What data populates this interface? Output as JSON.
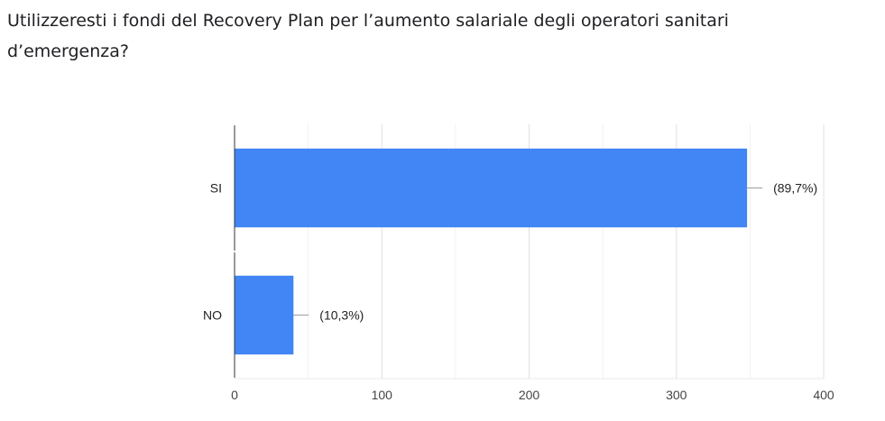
{
  "question": {
    "title": "Utilizzeresti i fondi del Recovery Plan per l’aumento salariale degli operatori sanitari d’emergenza?"
  },
  "chart_data": {
    "type": "bar",
    "orientation": "horizontal",
    "categories": [
      "SI",
      "NO"
    ],
    "values": [
      348,
      40
    ],
    "data_labels": [
      "(89,7%)",
      "(10,3%)"
    ],
    "xlim": [
      0,
      400
    ],
    "xticks": [
      0,
      100,
      200,
      300,
      400
    ],
    "grid": true,
    "bar_color": "#4285f4"
  }
}
